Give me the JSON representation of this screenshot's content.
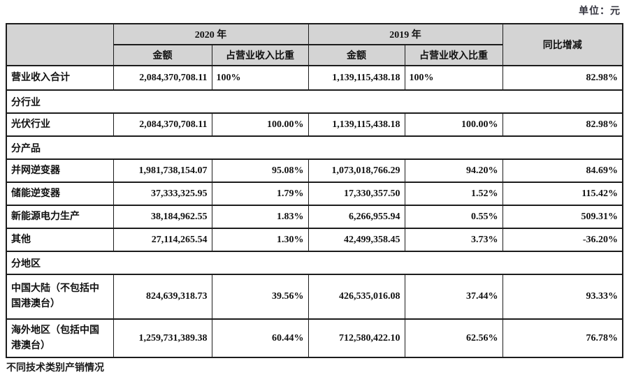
{
  "unit_label": "单位：元",
  "footer_text": "不同技术类别产销情况",
  "colors": {
    "header_bg": "#d4d4d4",
    "border": "#1c1c1c",
    "page_bg": "#ffffff",
    "text": "#111111"
  },
  "table": {
    "col_headers": {
      "year_2020": "2020 年",
      "year_2019": "2019 年",
      "amount_2020": "金额",
      "proportion_2020": "占营业收入比重",
      "amount_2019": "金额",
      "proportion_2019": "占营业收入比重",
      "yoy": "同比增减"
    },
    "rows": [
      {
        "type": "data",
        "variant": "total",
        "label": "营业收入合计",
        "amt_2020": "2,084,370,708.11",
        "pct_2020": "100%",
        "amt_2019": "1,139,115,438.18",
        "pct_2019": "100%",
        "yoy": "82.98%"
      },
      {
        "type": "section",
        "label": "分行业"
      },
      {
        "type": "data",
        "variant": "normal",
        "label": "光伏行业",
        "amt_2020": "2,084,370,708.11",
        "pct_2020": "100.00%",
        "amt_2019": "1,139,115,438.18",
        "pct_2019": "100.00%",
        "yoy": "82.98%"
      },
      {
        "type": "section",
        "label": "分产品"
      },
      {
        "type": "data",
        "variant": "normal",
        "label": "并网逆变器",
        "amt_2020": "1,981,738,154.07",
        "pct_2020": "95.08%",
        "amt_2019": "1,073,018,766.29",
        "pct_2019": "94.20%",
        "yoy": "84.69%"
      },
      {
        "type": "data",
        "variant": "normal",
        "label": "储能逆变器",
        "amt_2020": "37,333,325.95",
        "pct_2020": "1.79%",
        "amt_2019": "17,330,357.50",
        "pct_2019": "1.52%",
        "yoy": "115.42%"
      },
      {
        "type": "data",
        "variant": "normal",
        "label": "新能源电力生产",
        "amt_2020": "38,184,962.55",
        "pct_2020": "1.83%",
        "amt_2019": "6,266,955.94",
        "pct_2019": "0.55%",
        "yoy": "509.31%"
      },
      {
        "type": "data",
        "variant": "normal",
        "label": "其他",
        "amt_2020": "27,114,265.54",
        "pct_2020": "1.30%",
        "amt_2019": "42,499,358.45",
        "pct_2019": "3.73%",
        "yoy": "-36.20%"
      },
      {
        "type": "section",
        "label": "分地区"
      },
      {
        "type": "data",
        "variant": "normal",
        "label": "中国大陆（不包括中国港澳台）",
        "amt_2020": "824,639,318.73",
        "pct_2020": "39.56%",
        "amt_2019": "426,535,016.08",
        "pct_2019": "37.44%",
        "yoy": "93.33%",
        "tall": 64
      },
      {
        "type": "data",
        "variant": "normal",
        "label": "海外地区（包括中国港澳台）",
        "amt_2020": "1,259,731,389.38",
        "pct_2020": "60.44%",
        "amt_2019": "712,580,422.10",
        "pct_2019": "62.56%",
        "yoy": "76.78%",
        "tall": 55
      }
    ]
  }
}
